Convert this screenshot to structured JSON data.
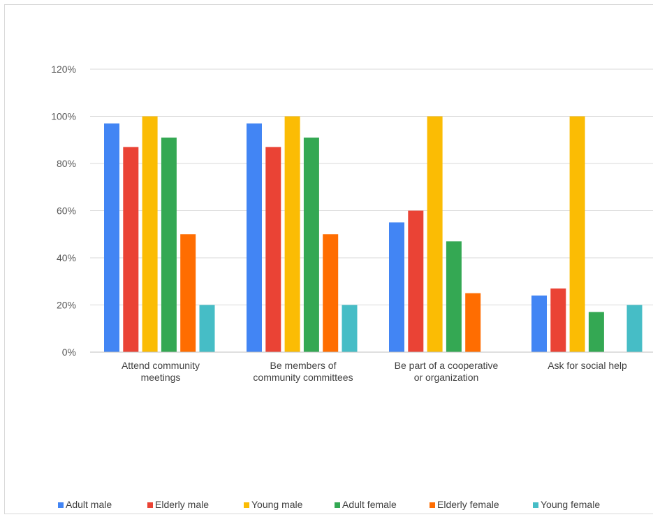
{
  "chart_data": {
    "type": "bar",
    "title": "",
    "xlabel": "",
    "ylabel": "",
    "ylim": [
      0,
      120
    ],
    "yticks": [
      "0%",
      "20%",
      "40%",
      "60%",
      "80%",
      "100%",
      "120%"
    ],
    "ytick_values": [
      0,
      20,
      40,
      60,
      80,
      100,
      120
    ],
    "grid": true,
    "legend_position": "bottom",
    "categories": [
      [
        "Attend community",
        "meetings"
      ],
      [
        "Be members of",
        "community committees"
      ],
      [
        "Be part of a cooperative",
        "or organization"
      ],
      [
        "Ask for social help"
      ]
    ],
    "series": [
      {
        "name": "Adult male",
        "color": "#4285f4",
        "values": [
          97,
          97,
          55,
          24
        ]
      },
      {
        "name": "Elderly male",
        "color": "#ea4335",
        "values": [
          87,
          87,
          60,
          27
        ]
      },
      {
        "name": "Young male",
        "color": "#fbbc04",
        "values": [
          100,
          100,
          100,
          100
        ]
      },
      {
        "name": "Adult female",
        "color": "#34a853",
        "values": [
          91,
          91,
          47,
          17
        ]
      },
      {
        "name": "Elderly female",
        "color": "#ff6d01",
        "values": [
          50,
          50,
          25,
          0
        ]
      },
      {
        "name": "Young female",
        "color": "#46bdc6",
        "values": [
          20,
          20,
          0,
          20
        ]
      }
    ]
  }
}
